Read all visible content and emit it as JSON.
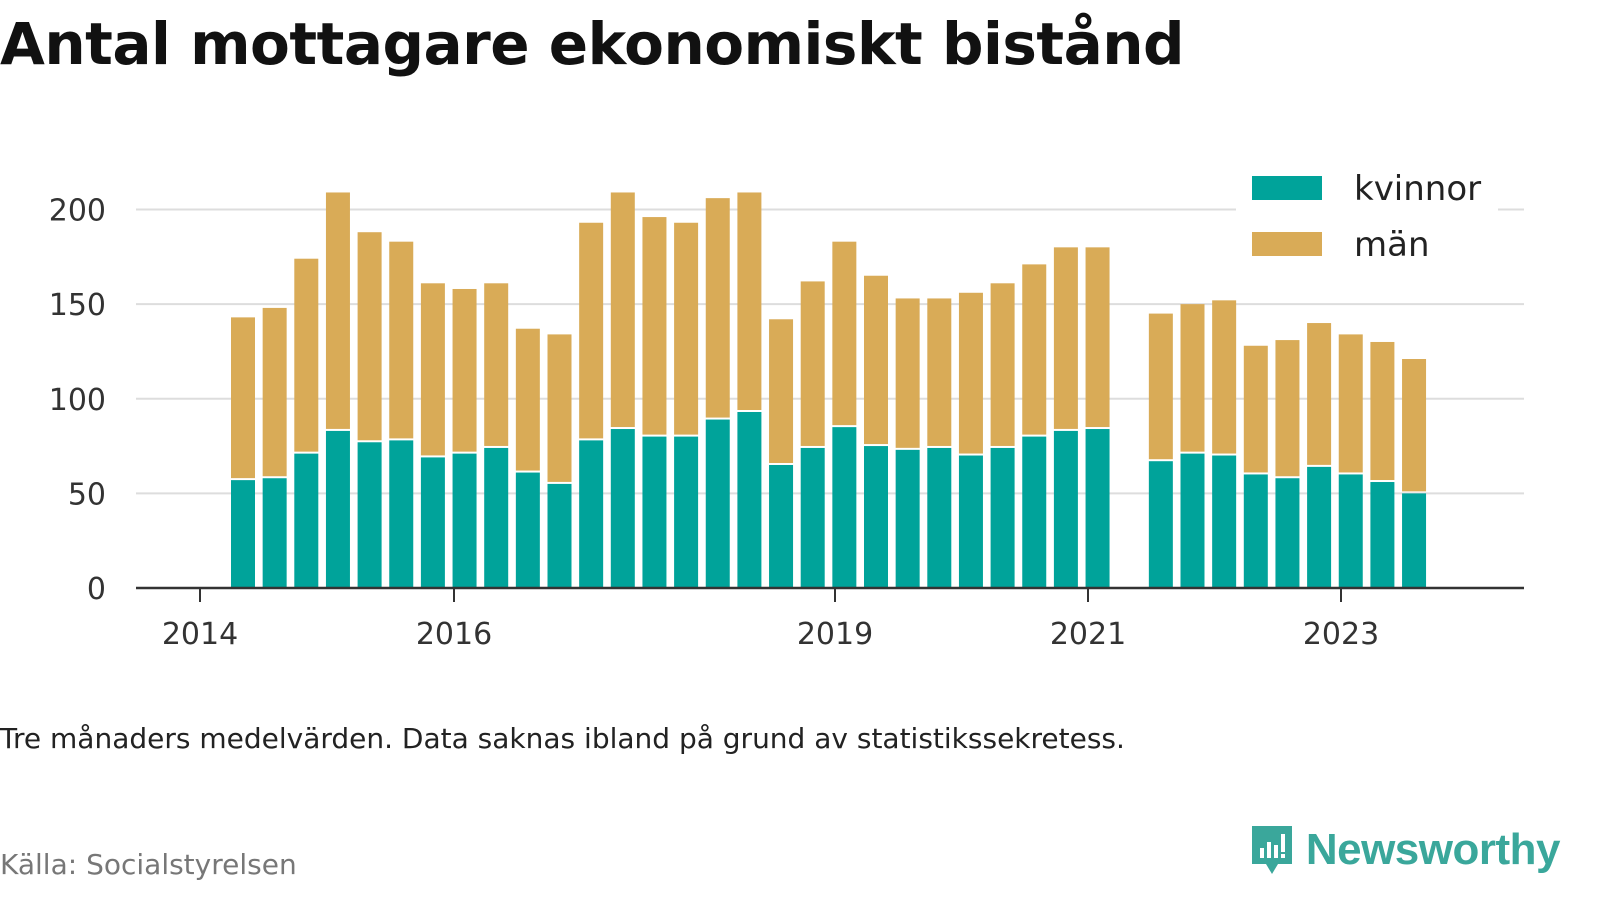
{
  "title": "Antal mottagare ekonomiskt bistånd",
  "note": "Tre månaders medelvärden. Data saknas ibland på grund av statistikssekretess.",
  "source": "Källa: Socialstyrelsen",
  "brand": "Newsworthy",
  "colors": {
    "kvinnor": "#00a39a",
    "man": "#d9ab57",
    "grid": "#dddddd",
    "axis": "#333333",
    "brand": "#3aa79b"
  },
  "chart_data": {
    "type": "bar",
    "stacked": true,
    "x_tick_labels": [
      "2014",
      "2016",
      "2019",
      "2021",
      "2023"
    ],
    "y_ticks": [
      0,
      50,
      100,
      150,
      200
    ],
    "ylim": [
      0,
      220
    ],
    "grid": true,
    "legend_position": "top-right",
    "series": [
      {
        "name": "kvinnor",
        "color": "#00a39a",
        "values": [
          57,
          58,
          71,
          83,
          77,
          78,
          69,
          71,
          74,
          61,
          55,
          78,
          84,
          80,
          80,
          89,
          93,
          65,
          74,
          85,
          75,
          73,
          74,
          70,
          74,
          80,
          83,
          84,
          null,
          67,
          71,
          70,
          60,
          58,
          64,
          60,
          56,
          50
        ]
      },
      {
        "name": "män",
        "color": "#d9ab57",
        "values": [
          86,
          90,
          103,
          126,
          111,
          105,
          92,
          87,
          87,
          76,
          79,
          115,
          125,
          116,
          113,
          117,
          116,
          77,
          88,
          98,
          90,
          80,
          79,
          86,
          87,
          91,
          97,
          96,
          null,
          78,
          79,
          82,
          68,
          73,
          76,
          74,
          74,
          71
        ]
      }
    ]
  }
}
